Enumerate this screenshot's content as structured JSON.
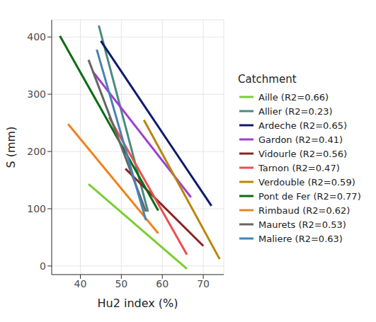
{
  "chart_data": {
    "type": "line",
    "x_label": "Hu2 index (%)",
    "y_label": "S (mm)",
    "legend_title": "Catchment",
    "xlim": [
      33,
      75
    ],
    "xticks": [
      40,
      50,
      60,
      70
    ],
    "ylim": [
      -15,
      430
    ],
    "yticks": [
      0,
      100,
      200,
      300,
      400
    ],
    "grid": true,
    "legend": "right",
    "series": [
      {
        "name": "Aille (R2=0.66)",
        "color": "#7ccd32",
        "x": [
          42,
          66
        ],
        "values": [
          143,
          -5
        ]
      },
      {
        "name": "Allier (R2=0.23)",
        "color": "#4a8b7f",
        "x": [
          44.5,
          56.5
        ],
        "values": [
          420,
          95
        ]
      },
      {
        "name": "Ardeche (R2=0.65)",
        "color": "#0d1a6b",
        "x": [
          45,
          72
        ],
        "values": [
          393,
          105
        ]
      },
      {
        "name": "Gardon (R2=0.41)",
        "color": "#9e3fcf",
        "x": [
          43,
          67
        ],
        "values": [
          340,
          120
        ]
      },
      {
        "name": "Vidourle (R2=0.56)",
        "color": "#8b2323",
        "x": [
          51,
          70
        ],
        "values": [
          170,
          35
        ]
      },
      {
        "name": "Tarnon (R2=0.47)",
        "color": "#e8504f",
        "x": [
          47,
          66
        ],
        "values": [
          260,
          20
        ]
      },
      {
        "name": "Verdouble (R2=0.59)",
        "color": "#b8860b",
        "x": [
          55.5,
          74
        ],
        "values": [
          255,
          12
        ]
      },
      {
        "name": "Pont de Fer (R2=0.77)",
        "color": "#0a6b14",
        "x": [
          35,
          59
        ],
        "values": [
          402,
          97
        ]
      },
      {
        "name": "Rimbaud (R2=0.62)",
        "color": "#f0821e",
        "x": [
          37,
          59
        ],
        "values": [
          248,
          57
        ]
      },
      {
        "name": "Maurets (R2=0.53)",
        "color": "#666666",
        "x": [
          42,
          56
        ],
        "values": [
          360,
          95
        ]
      },
      {
        "name": "Maliere (R2=0.63)",
        "color": "#4682b4",
        "x": [
          44,
          56
        ],
        "values": [
          378,
          80
        ]
      }
    ]
  }
}
